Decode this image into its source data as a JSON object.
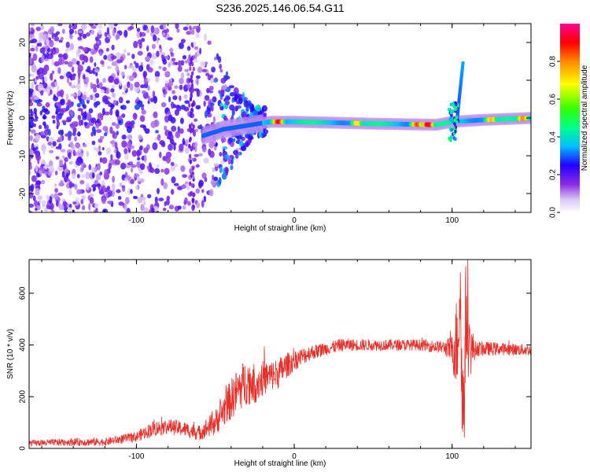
{
  "title": "S236.2025.146.06.54.G11",
  "chart_data": [
    {
      "type": "heatmap",
      "title": "S236.2025.146.06.54.G11",
      "xlabel": "Height of straight line (km)",
      "ylabel": "Frequency (Hz)",
      "xlim": [
        -168,
        150
      ],
      "ylim": [
        -25,
        25
      ],
      "xticks": [
        -100,
        0,
        100
      ],
      "yticks": [
        -20,
        -10,
        0,
        10,
        20
      ],
      "colorbar": {
        "label": "Normalized spectral amplitude",
        "range": [
          0,
          1
        ],
        "ticks": [
          "0.0",
          "0.2",
          "0.4",
          "0.6",
          "0.8"
        ],
        "colormap": [
          "#ffffff",
          "#e8d8f8",
          "#8a2be2",
          "#4400ff",
          "#0000ff",
          "#00ffff",
          "#00ff00",
          "#ffff00",
          "#ff8800",
          "#ff0000",
          "#ff00ff"
        ]
      },
      "ridge": {
        "description_points": [
          {
            "x": -60,
            "y": -5
          },
          {
            "x": -45,
            "y": -3
          },
          {
            "x": -30,
            "y": -2
          },
          {
            "x": -15,
            "y": -1
          },
          {
            "x": 0,
            "y": -1
          },
          {
            "x": 50,
            "y": -1.5
          },
          {
            "x": 90,
            "y": -1.8
          },
          {
            "x": 100,
            "y": -1
          },
          {
            "x": 120,
            "y": -0.5
          },
          {
            "x": 150,
            "y": 0
          }
        ],
        "hotspots": [
          {
            "x": -10,
            "y": -1,
            "value": 0.9
          },
          {
            "x": 40,
            "y": -1.5,
            "value": 0.7
          },
          {
            "x": 78,
            "y": -1.8,
            "value": 0.85
          },
          {
            "x": 85,
            "y": -1.8,
            "value": 0.95
          },
          {
            "x": 125,
            "y": -1,
            "value": 0.75
          },
          {
            "x": 145,
            "y": 0,
            "value": 0.8
          }
        ],
        "spike": {
          "x": 107,
          "y_from": -1,
          "y_to": 15
        }
      }
    },
    {
      "type": "line",
      "xlabel": "Height of straight line (km)",
      "ylabel": "SNR (10 * v/v)",
      "xlim": [
        -168,
        150
      ],
      "ylim": [
        0,
        730
      ],
      "xticks": [
        -100,
        0,
        100
      ],
      "yticks": [
        0,
        200,
        400,
        600
      ],
      "color": "#e8302a",
      "series": [
        {
          "x": [
            -168,
            -140,
            -120,
            -100,
            -90,
            -80,
            -70,
            -60,
            -50,
            -40,
            -35,
            -30,
            -25,
            -20,
            -15,
            -10,
            -5,
            0,
            10,
            20,
            30,
            50,
            80,
            95,
            100,
            103,
            105,
            107,
            109,
            111,
            115,
            130,
            150
          ],
          "y": [
            20,
            25,
            25,
            45,
            75,
            85,
            75,
            60,
            100,
            190,
            230,
            260,
            250,
            270,
            280,
            290,
            320,
            340,
            370,
            385,
            400,
            400,
            400,
            390,
            380,
            400,
            600,
            100,
            550,
            380,
            385,
            385,
            380
          ],
          "noise": [
            12,
            15,
            15,
            20,
            30,
            30,
            30,
            30,
            50,
            80,
            90,
            90,
            80,
            70,
            60,
            60,
            50,
            40,
            30,
            25,
            25,
            22,
            22,
            25,
            60,
            200,
            250,
            250,
            250,
            120,
            30,
            25,
            22
          ]
        }
      ]
    }
  ]
}
